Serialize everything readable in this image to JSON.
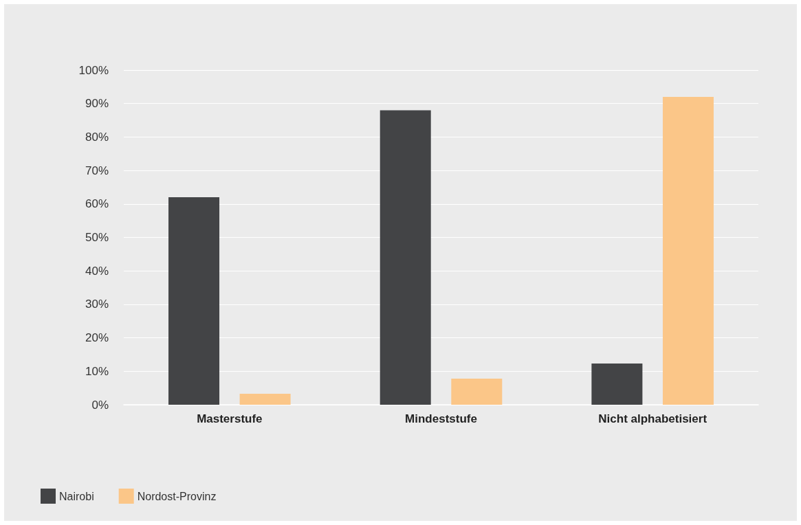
{
  "chart_data": {
    "type": "bar",
    "categories": [
      "Masterstufe",
      "Mindeststufe",
      "Nicht alphabetisiert"
    ],
    "series": [
      {
        "name": "Nairobi",
        "color": "#434446",
        "values": [
          62,
          88,
          12.3
        ]
      },
      {
        "name": "Nordost-Provinz",
        "color": "#fbc688",
        "values": [
          3.3,
          7.8,
          92
        ]
      }
    ],
    "ylim": [
      0,
      100
    ],
    "yticks": [
      {
        "value": 0,
        "label": "0%"
      },
      {
        "value": 10,
        "label": "10%"
      },
      {
        "value": 20,
        "label": "20%"
      },
      {
        "value": 30,
        "label": "30%"
      },
      {
        "value": 40,
        "label": "40%"
      },
      {
        "value": 50,
        "label": "50%"
      },
      {
        "value": 60,
        "label": "60%"
      },
      {
        "value": 70,
        "label": "70%"
      },
      {
        "value": 80,
        "label": "80%"
      },
      {
        "value": 90,
        "label": "90%"
      },
      {
        "value": 100,
        "label": "100%"
      }
    ],
    "grid": "y",
    "legend": "bottom left"
  }
}
